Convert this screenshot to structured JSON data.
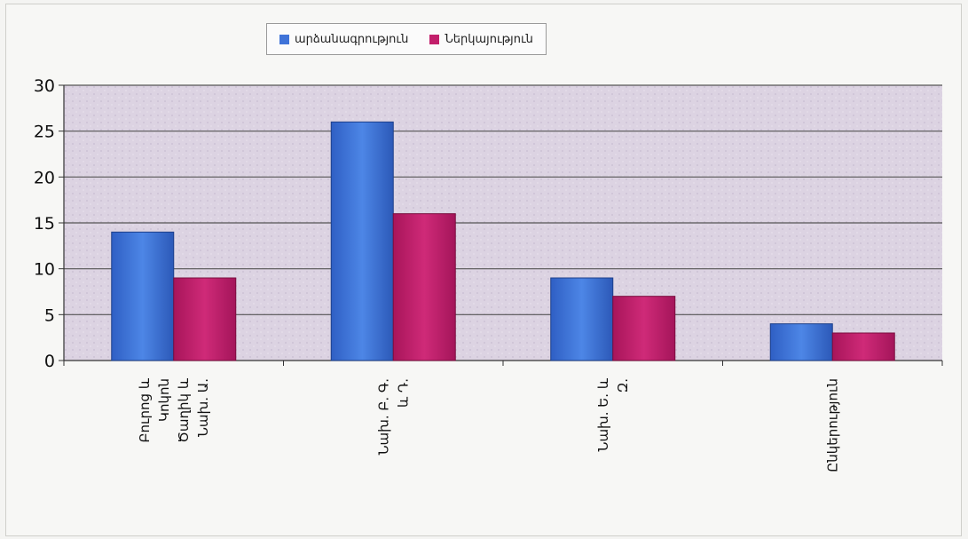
{
  "chart_data": {
    "type": "bar",
    "title": "",
    "xlabel": "",
    "ylabel": "",
    "ylim": [
      0,
      30
    ],
    "yticks": [
      "0",
      "5",
      "10",
      "15",
      "20",
      "25",
      "30"
    ],
    "grid": true,
    "legend_position": "top",
    "categories": [
      [
        "Բուրոց և",
        "Կոկոն",
        "Ծաղիկ և",
        "Նախ. Ա."
      ],
      [
        "Նախ. Բ. Գ.",
        "և Դ."
      ],
      [
        "Նախ. Ե. և",
        "Զ."
      ],
      [
        "Ընկերություն"
      ]
    ],
    "series": [
      {
        "name": "արձանագրություն",
        "color": "#3f73d8",
        "values": [
          14,
          26,
          9,
          4
        ]
      },
      {
        "name": "Ներկայություն",
        "color": "#c21f6b",
        "values": [
          9,
          16,
          7,
          3
        ]
      }
    ]
  }
}
